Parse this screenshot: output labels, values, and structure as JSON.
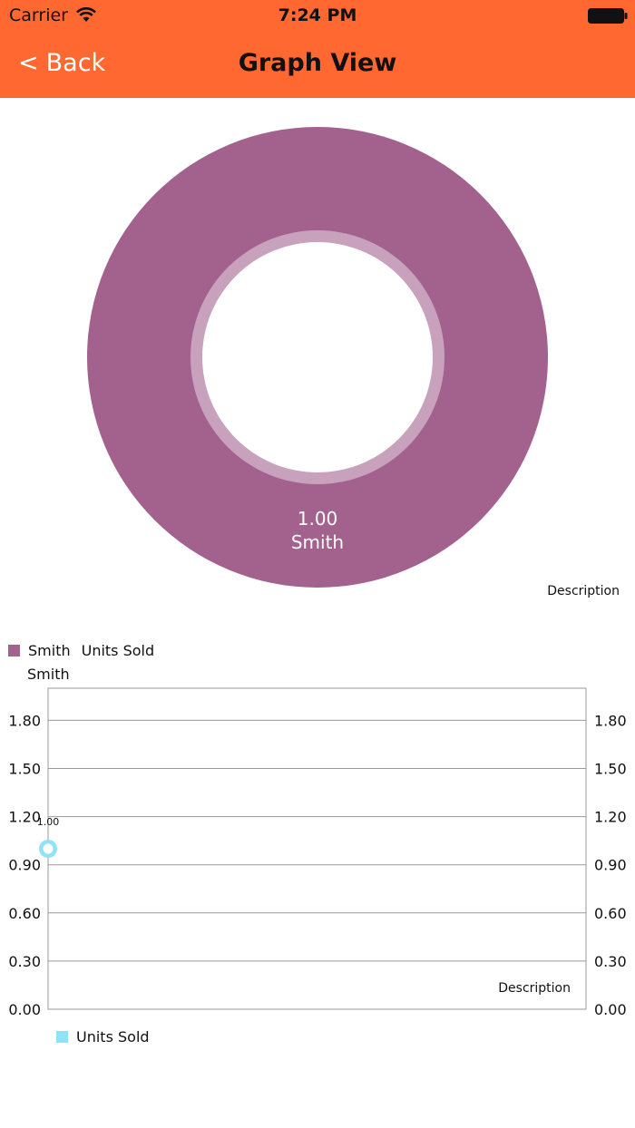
{
  "status_bar": {
    "carrier": "Carrier",
    "time": "7:24 PM",
    "wifi_icon": "wifi-icon",
    "battery_icon": "battery-icon"
  },
  "nav": {
    "back_label": "Back",
    "back_icon": "chevron-left-icon",
    "title": "Graph View",
    "background_color": "#ff6831"
  },
  "pie_chart": {
    "slice_value_label": "1.00",
    "slice_name_label": "Smith",
    "description": "Description",
    "legend": {
      "entry_label": "Smith",
      "entry_label_2": "Units Sold",
      "entry_label_3": "Smith"
    }
  },
  "line_chart": {
    "description": "Description",
    "point_value_label": "1.00",
    "legend_label": "Units Sold",
    "y_ticks": [
      "1.80",
      "1.50",
      "1.20",
      "0.90",
      "0.60",
      "0.30",
      "0.00"
    ]
  },
  "chart_data": [
    {
      "type": "pie",
      "style": "donut",
      "categories": [
        "Smith"
      ],
      "values": [
        1.0
      ],
      "data_labels": [
        "1.00"
      ],
      "legend": [
        "Smith"
      ],
      "legend_position": "bottom-left",
      "colors": [
        "#a3618e"
      ],
      "hole_ring_color": "#c8a1bc",
      "description": "Description"
    },
    {
      "type": "line",
      "x": [
        0
      ],
      "series": [
        {
          "name": "Units Sold",
          "values": [
            1.0
          ],
          "color": "#8fe3f5"
        }
      ],
      "data_labels": [
        "1.00"
      ],
      "ylim": [
        0,
        2.0
      ],
      "yticks": [
        0.0,
        0.3,
        0.6,
        0.9,
        1.2,
        1.5,
        1.8
      ],
      "ytick_labels": [
        "0.00",
        "0.30",
        "0.60",
        "0.90",
        "1.20",
        "1.50",
        "1.80"
      ],
      "y_axis_both_sides": true,
      "grid": true,
      "legend_position": "bottom-left",
      "description": "Description"
    }
  ]
}
